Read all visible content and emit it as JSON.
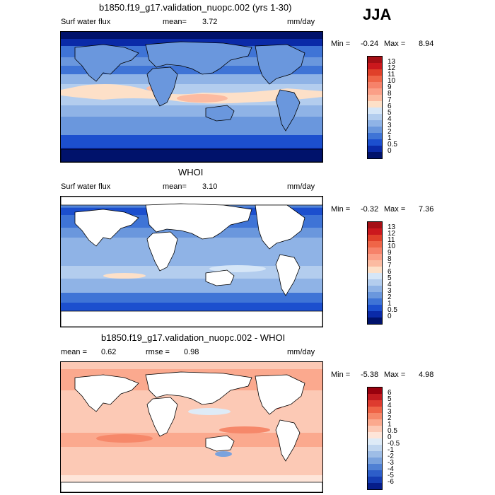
{
  "season": "JJA",
  "panels": [
    {
      "title": "b1850.f19_g17.validation_nuopc.002 (yrs 1-30)",
      "field": "Surf water flux",
      "mean_label": "mean=",
      "mean": "3.72",
      "units": "mm/day",
      "min_label": "Min =",
      "min": "-0.24",
      "max_label": "Max =",
      "max": "8.94",
      "colorbar_labels": [
        "13",
        "12",
        "11",
        "10",
        "9",
        "8",
        "7",
        "6",
        "5",
        "4",
        "3",
        "2",
        "1",
        "0.5",
        "0"
      ],
      "colorbar_colors": [
        "#a50f15",
        "#cb181d",
        "#e0402a",
        "#ef6548",
        "#f6826a",
        "#fb9f87",
        "#fcbba1",
        "#fde0c8",
        "#d6e6f7",
        "#b3cdee",
        "#8fb3e6",
        "#6a97dd",
        "#3f74d6",
        "#1c4fce",
        "#0a2aa8",
        "#00126b"
      ]
    },
    {
      "title": "WHOI",
      "field": "Surf water flux",
      "mean_label": "mean=",
      "mean": "3.10",
      "units": "mm/day",
      "min_label": "Min =",
      "min": "-0.32",
      "max_label": "Max =",
      "max": "7.36",
      "colorbar_labels": [
        "13",
        "12",
        "11",
        "10",
        "9",
        "8",
        "7",
        "6",
        "5",
        "4",
        "3",
        "2",
        "1",
        "0.5",
        "0"
      ],
      "colorbar_colors": [
        "#a50f15",
        "#cb181d",
        "#e0402a",
        "#ef6548",
        "#f6826a",
        "#fb9f87",
        "#fcbba1",
        "#fde0c8",
        "#d6e6f7",
        "#b3cdee",
        "#8fb3e6",
        "#6a97dd",
        "#3f74d6",
        "#1c4fce",
        "#0a2aa8",
        "#00126b"
      ]
    },
    {
      "title": "b1850.f19_g17.validation_nuopc.002 - WHOI",
      "mean_label": "mean =",
      "mean": "0.62",
      "rmse_label": "rmse =",
      "rmse": "0.98",
      "units": "mm/day",
      "min_label": "Min =",
      "min": "-5.38",
      "max_label": "Max =",
      "max": "4.98",
      "colorbar_labels": [
        "6",
        "5",
        "4",
        "3",
        "2",
        "1",
        "0.5",
        "0",
        "-0.5",
        "-1",
        "-2",
        "-3",
        "-4",
        "-5",
        "-6"
      ],
      "colorbar_colors": [
        "#99000d",
        "#c21a1f",
        "#de3b2f",
        "#ef6447",
        "#f6886a",
        "#fba98e",
        "#fcc9b5",
        "#fee5d9",
        "#deebf7",
        "#c0d6ef",
        "#9ebde6",
        "#7aa2dd",
        "#5080d3",
        "#2d5ec9",
        "#153db3",
        "#061d8a"
      ]
    }
  ]
}
